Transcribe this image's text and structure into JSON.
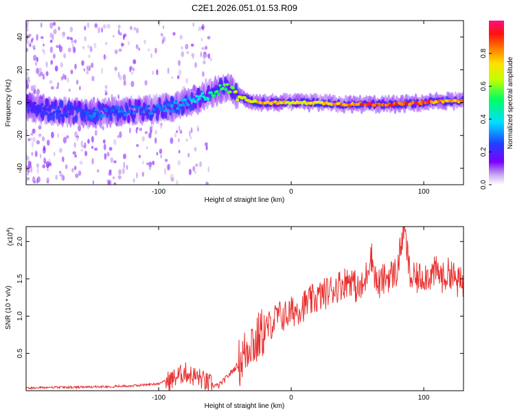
{
  "title": "C2E1.2026.051.01.53.R09",
  "colors": {
    "line": "#e8302f",
    "axis": "#000000",
    "background": "#ffffff"
  },
  "chart_data": [
    {
      "type": "heatmap",
      "name": "spectrogram",
      "xlabel": "Height of straight line (km)",
      "ylabel": "Frequency (Hz)",
      "xlim": [
        -200,
        130
      ],
      "ylim": [
        -50,
        50
      ],
      "x_ticks": [
        -100,
        0,
        100
      ],
      "x_tick_labels": [
        "-100",
        "0",
        "100"
      ],
      "y_ticks": [
        -40,
        -20,
        0,
        20,
        40
      ],
      "y_tick_labels": [
        "-40",
        "-20",
        "0",
        "20",
        "40"
      ],
      "ridge": {
        "x": [
          -200,
          -180,
          -160,
          -150,
          -140,
          -120,
          -100,
          -85,
          -70,
          -60,
          -50,
          -45,
          -40,
          -30,
          -20,
          -10,
          0,
          20,
          40,
          60,
          80,
          100,
          115,
          130
        ],
        "freq": [
          -2,
          -5,
          -6,
          -7,
          -6,
          -5,
          -4,
          -2,
          2,
          6,
          9,
          8,
          4,
          1,
          0,
          0,
          0,
          0,
          -1,
          -1,
          -1,
          0,
          1,
          1
        ],
        "amplitude": [
          0.2,
          0.25,
          0.25,
          0.3,
          0.3,
          0.3,
          0.3,
          0.35,
          0.4,
          0.5,
          0.55,
          0.6,
          0.7,
          0.75,
          0.8,
          0.8,
          0.75,
          0.75,
          0.85,
          0.95,
          0.9,
          0.95,
          0.8,
          0.85
        ]
      },
      "colorbar": {
        "label": "Normalized spectral amplitude",
        "range": [
          0,
          1
        ],
        "ticks": [
          0.0,
          0.2,
          0.4,
          0.6,
          0.8
        ],
        "tick_labels": [
          "0.0",
          "0.2",
          "0.4",
          "0.6",
          "0.8"
        ]
      }
    },
    {
      "type": "line",
      "name": "snr",
      "xlabel": "Height of straight line (km)",
      "ylabel": "SNR (10 * v/v)",
      "scale_label": "(x10",
      "scale_exponent": "4",
      "scale_close": ")",
      "xlim": [
        -200,
        130
      ],
      "ylim": [
        0,
        2.2
      ],
      "x_ticks": [
        -100,
        0,
        100
      ],
      "x_tick_labels": [
        "-100",
        "0",
        "100"
      ],
      "y_ticks": [
        0.5,
        1.0,
        1.5,
        2.0
      ],
      "y_tick_labels": [
        "0.5",
        "1.0",
        "1.5",
        "2.0"
      ],
      "series": [
        {
          "name": "SNR",
          "x": [
            -200,
            -180,
            -160,
            -140,
            -120,
            -100,
            -90,
            -85,
            -80,
            -75,
            -70,
            -65,
            -60,
            -55,
            -50,
            -45,
            -40,
            -35,
            -30,
            -27,
            -24,
            -20,
            -15,
            -10,
            -5,
            0,
            5,
            10,
            15,
            20,
            25,
            30,
            35,
            40,
            45,
            50,
            55,
            60,
            65,
            70,
            75,
            80,
            85,
            90,
            95,
            100,
            105,
            110,
            115,
            120,
            125,
            130
          ],
          "y": [
            0.02,
            0.03,
            0.03,
            0.04,
            0.05,
            0.08,
            0.15,
            0.2,
            0.25,
            0.2,
            0.18,
            0.12,
            0.08,
            0.06,
            0.15,
            0.25,
            0.35,
            0.5,
            0.7,
            0.6,
            0.75,
            0.8,
            0.9,
            1.0,
            1.0,
            1.05,
            1.1,
            1.15,
            1.2,
            1.25,
            1.3,
            1.35,
            1.4,
            1.45,
            1.5,
            1.35,
            1.4,
            1.85,
            1.4,
            1.5,
            1.55,
            1.6,
            2.2,
            1.5,
            1.5,
            1.55,
            1.55,
            1.6,
            1.5,
            1.6,
            1.45,
            1.45
          ]
        }
      ]
    }
  ]
}
